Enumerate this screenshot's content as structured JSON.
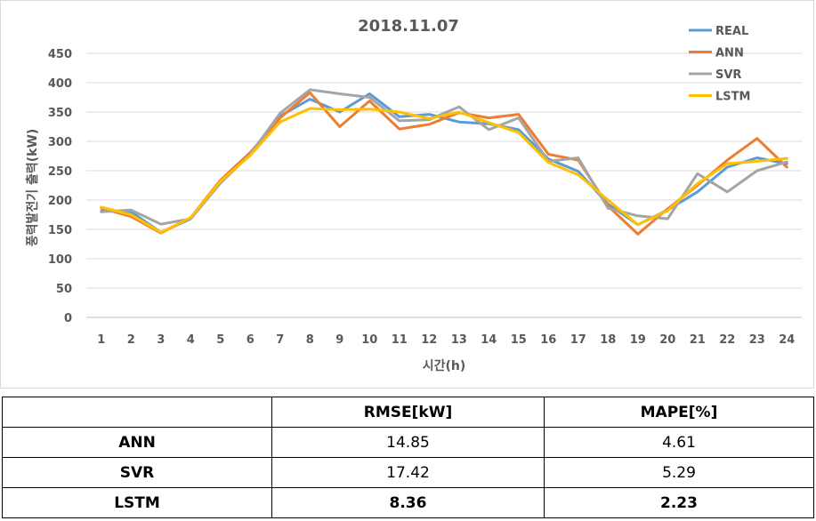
{
  "chart_data": {
    "type": "line",
    "title": "2018.11.07",
    "xlabel": "시간(h)",
    "ylabel": "풍력발전기 출력(kW)",
    "x": [
      1,
      2,
      3,
      4,
      5,
      6,
      7,
      8,
      9,
      10,
      11,
      12,
      13,
      14,
      15,
      16,
      17,
      18,
      19,
      20,
      21,
      22,
      23,
      24
    ],
    "ylim": [
      0,
      450
    ],
    "yticks": [
      0,
      50,
      100,
      150,
      200,
      250,
      300,
      350,
      400,
      450
    ],
    "grid": true,
    "legend_position": "top-right",
    "series": [
      {
        "name": "REAL",
        "color": "#5b9bd5",
        "values": [
          181,
          180,
          145,
          168,
          230,
          278,
          343,
          372,
          350,
          381,
          342,
          346,
          333,
          330,
          320,
          270,
          249,
          193,
          158,
          183,
          214,
          256,
          272,
          262
        ]
      },
      {
        "name": "ANN",
        "color": "#ed7d31",
        "values": [
          186,
          172,
          144,
          170,
          234,
          281,
          340,
          383,
          325,
          369,
          321,
          329,
          349,
          340,
          346,
          278,
          268,
          190,
          142,
          185,
          225,
          268,
          305,
          256
        ]
      },
      {
        "name": "SVR",
        "color": "#a5a5a5",
        "values": [
          180,
          183,
          159,
          168,
          229,
          278,
          348,
          388,
          381,
          375,
          335,
          337,
          359,
          320,
          340,
          266,
          272,
          186,
          173,
          168,
          245,
          214,
          250,
          265
        ]
      },
      {
        "name": "LSTM",
        "color": "#ffc000",
        "values": [
          188,
          175,
          145,
          170,
          232,
          276,
          333,
          356,
          354,
          355,
          350,
          339,
          350,
          332,
          315,
          264,
          243,
          200,
          158,
          182,
          228,
          262,
          266,
          271
        ]
      }
    ]
  },
  "table": {
    "headers": [
      "",
      "RMSE[kW]",
      "MAPE[%]"
    ],
    "rows": [
      {
        "label": "ANN",
        "rmse": "14.85",
        "mape": "4.61"
      },
      {
        "label": "SVR",
        "rmse": "17.42",
        "mape": "5.29"
      },
      {
        "label": "LSTM",
        "rmse": "8.36",
        "mape": "2.23"
      }
    ]
  }
}
